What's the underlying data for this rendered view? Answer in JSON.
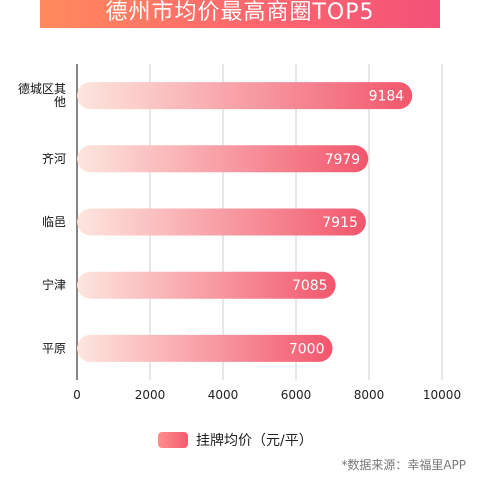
{
  "header": {
    "title": "德州市均价最高商圈TOP5"
  },
  "chart_data": {
    "type": "bar",
    "orientation": "horizontal",
    "categories": [
      "德城区其他",
      "齐河",
      "临邑",
      "宁津",
      "平原"
    ],
    "series": [
      {
        "name": "挂牌均价（元/平）",
        "values": [
          9184,
          7979,
          7915,
          7085,
          7000
        ]
      }
    ],
    "xlim": [
      0,
      10000
    ],
    "xticks": [
      0,
      2000,
      4000,
      6000,
      8000,
      10000
    ],
    "grid": true,
    "legend_position": "bottom",
    "colors": {
      "bar_start": "#fde6de",
      "bar_end": "#f2566c",
      "title_bg": "#f25278"
    }
  },
  "footer": {
    "source": "*数据来源：幸福里APP"
  }
}
